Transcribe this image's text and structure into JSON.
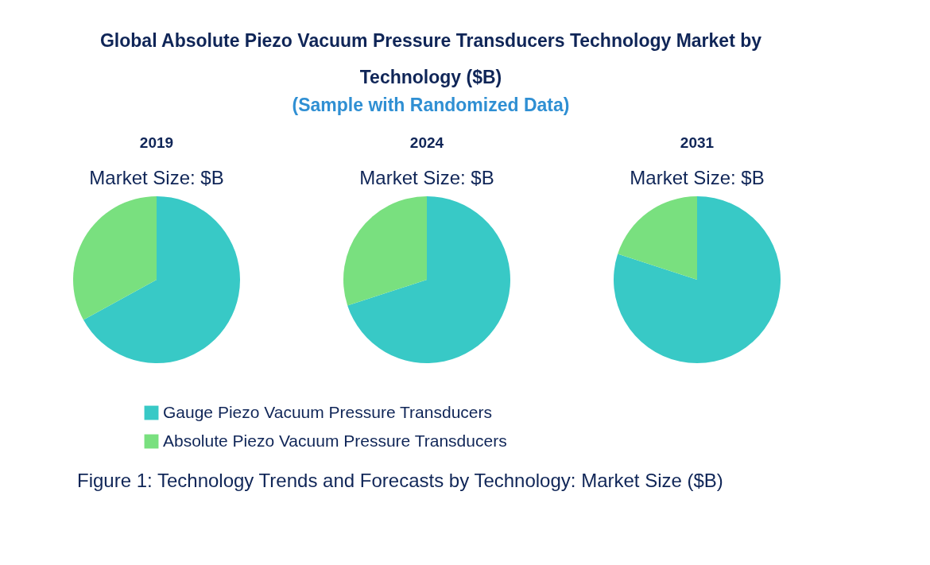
{
  "chart_data": [
    {
      "type": "other",
      "title": "Global Absolute Piezo Vacuum Pressure Transducers Technology Market by Technology ($B)",
      "subtitle": "(Sample with Randomized Data)",
      "annotations": [
        "Figure 1: Technology Trends and Forecasts by Technology: Market Size ($B)"
      ]
    },
    {
      "type": "pie",
      "title": "2019",
      "subtitle": "Market Size: $B",
      "categories": [
        "Gauge Piezo Vacuum Pressure Transducers",
        "Absolute Piezo Vacuum Pressure Transducers"
      ],
      "values": [
        67,
        33
      ],
      "colors": [
        "#38c9c6",
        "#79e07f"
      ],
      "legend": "bottom"
    },
    {
      "type": "pie",
      "title": "2024",
      "subtitle": "Market Size: $B",
      "values": [
        70,
        30
      ]
    },
    {
      "type": "pie",
      "title": "2031",
      "subtitle": "Market Size: $B",
      "values": [
        80,
        20
      ]
    }
  ]
}
